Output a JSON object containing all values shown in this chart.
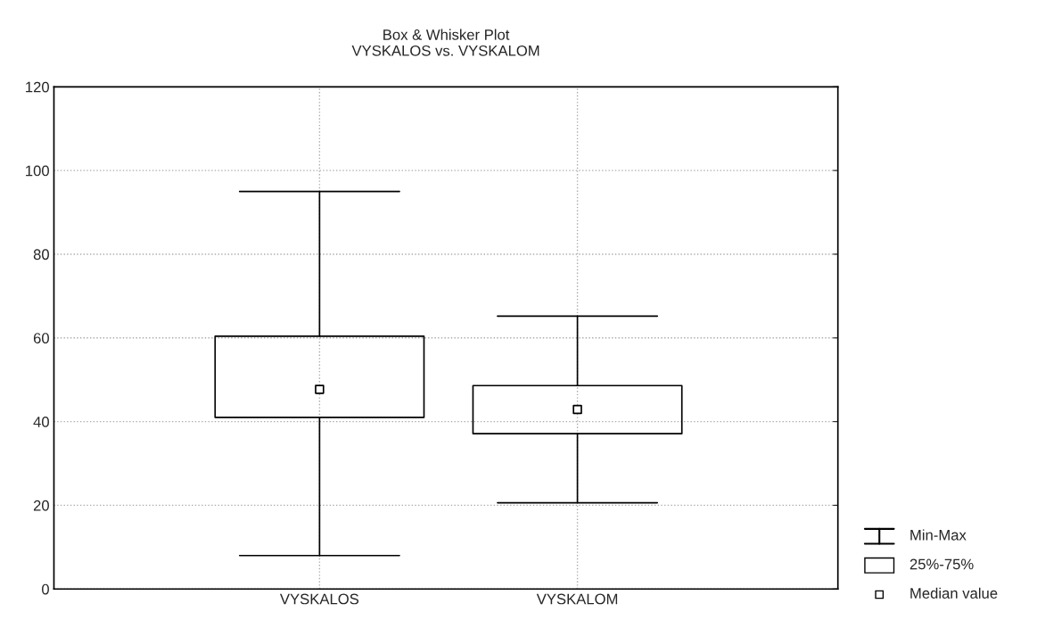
{
  "chart_data": {
    "type": "box",
    "title": "Box & Whisker Plot",
    "subtitle": "VYSKALOS vs. VYSKALOM",
    "categories": [
      "VYSKALOS",
      "VYSKALOM"
    ],
    "boxes": [
      {
        "low": 8,
        "q1": 41,
        "median": 47.7,
        "q3": 60.4,
        "high": 95
      },
      {
        "low": 20.6,
        "q1": 37.1,
        "median": 42.9,
        "q3": 48.6,
        "high": 65.2
      }
    ],
    "ylim": [
      0,
      120
    ],
    "yticks": [
      0,
      20,
      40,
      60,
      80,
      100,
      120
    ],
    "grid": true,
    "marker": "square",
    "annotations": [
      "Min-Max",
      "25%-75%",
      "Median value"
    ]
  }
}
